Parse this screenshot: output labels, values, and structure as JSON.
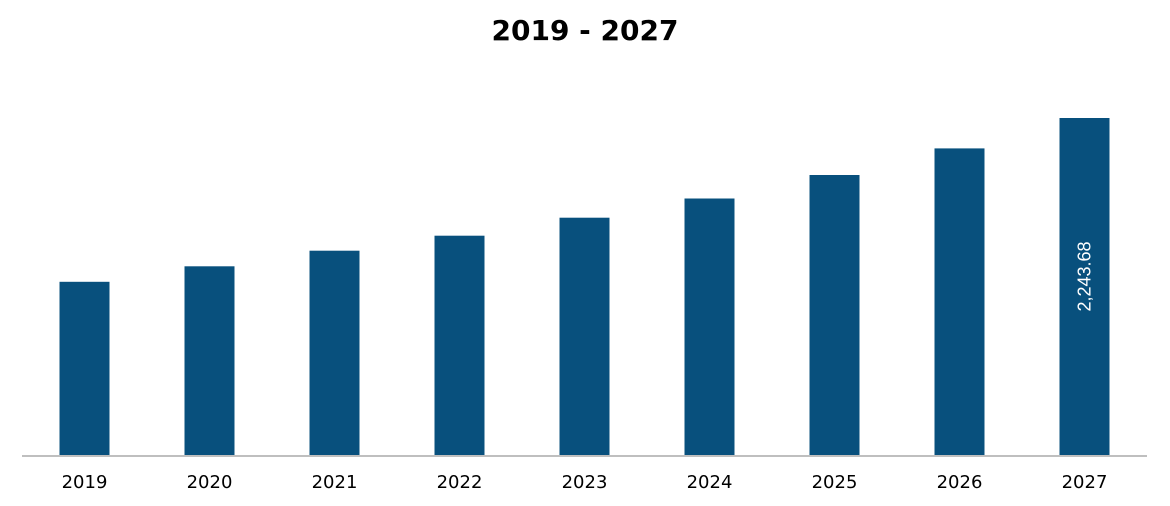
{
  "chart_data": {
    "type": "bar",
    "title": "2019 - 2027",
    "xlabel": "",
    "ylabel": "",
    "categories": [
      "2019",
      "2020",
      "2021",
      "2022",
      "2023",
      "2024",
      "2025",
      "2026",
      "2027"
    ],
    "values": [
      1153,
      1256,
      1360,
      1460,
      1580,
      1708,
      1864,
      2041,
      2243.68
    ],
    "data_labels": [
      {
        "index": 8,
        "text": "2,243.68"
      }
    ],
    "ylim": [
      0,
      2243.68
    ],
    "grid": false,
    "legend": "none",
    "bar_color": "#08507D",
    "axis_color": "#BFBFBF"
  }
}
